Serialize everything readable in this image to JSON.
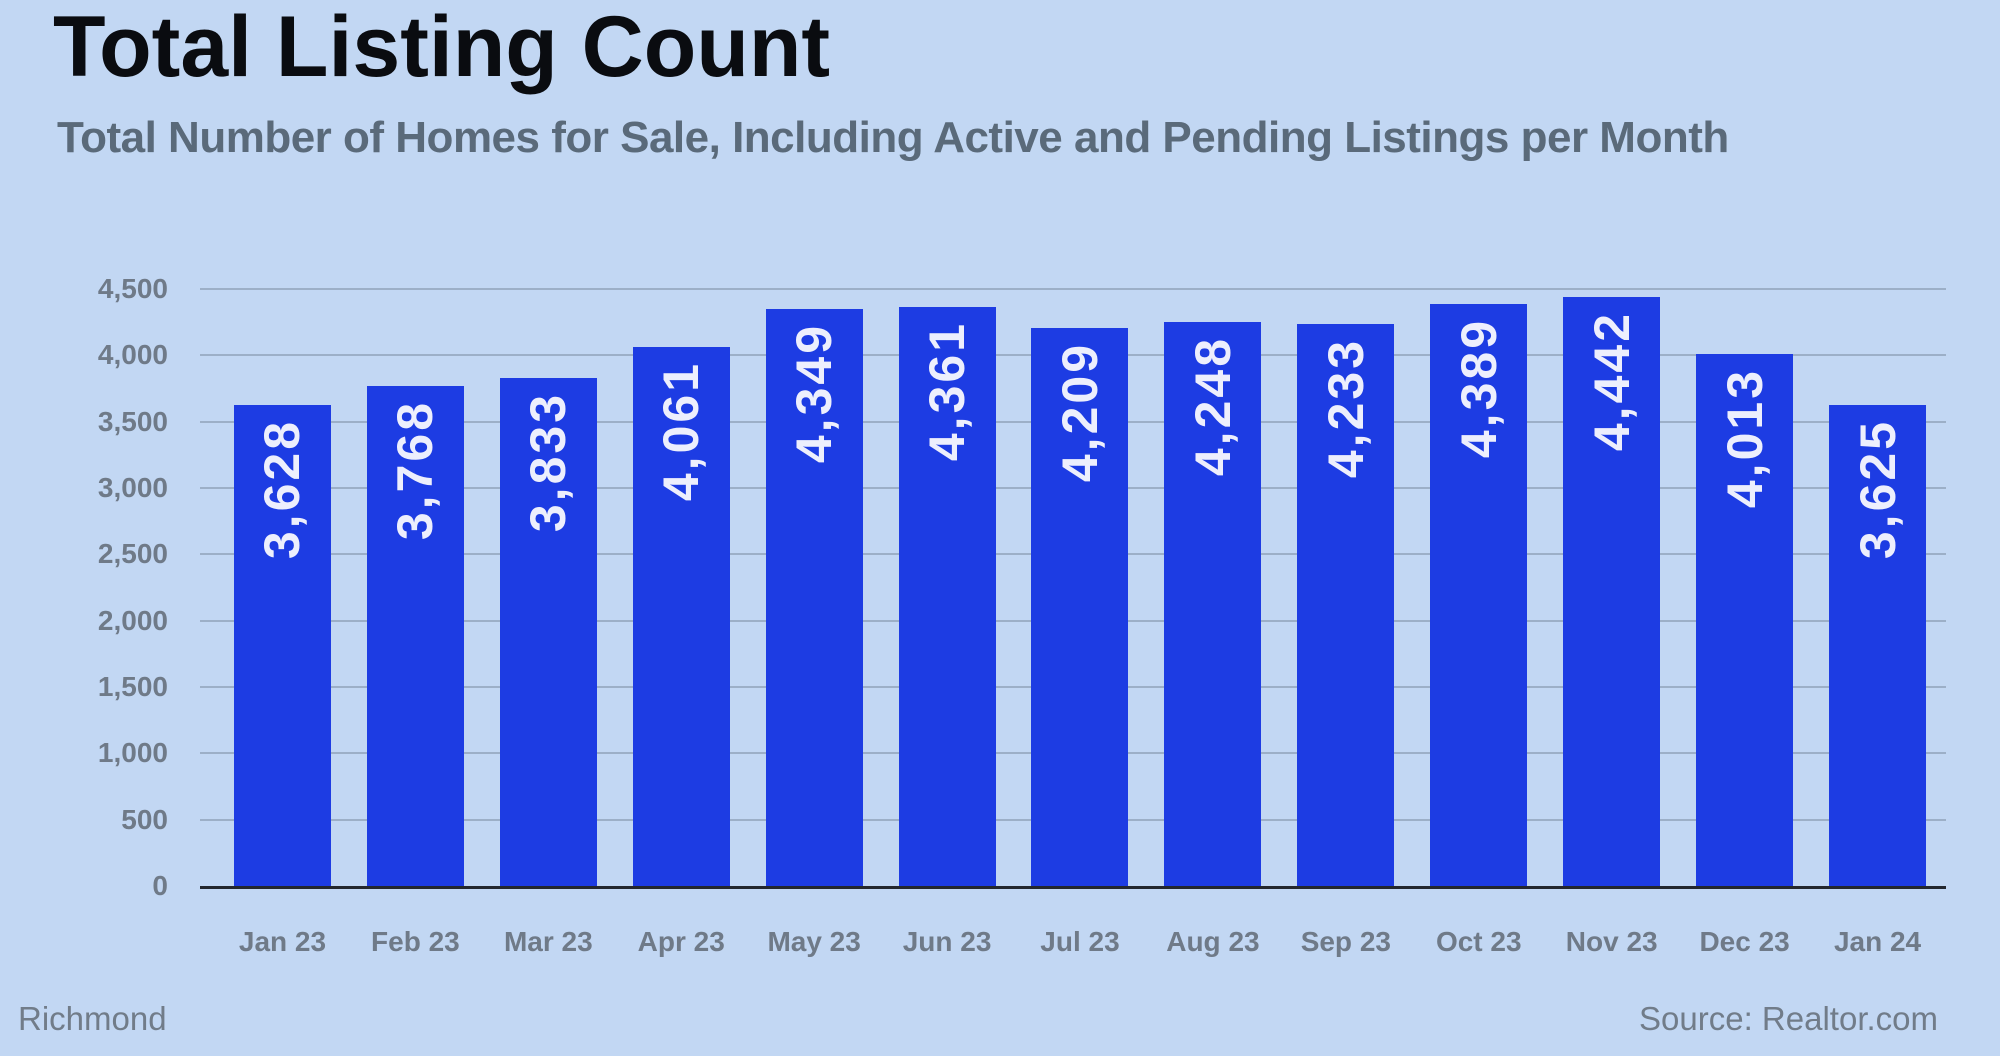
{
  "title": "Total Listing Count",
  "subtitle": "Total Number of Homes for Sale, Including Active and Pending Listings per Month",
  "footer": {
    "left": "Richmond",
    "right": "Source: Realtor.com"
  },
  "colors": {
    "background": "#c2d7f3",
    "bar": "#1d3ce3",
    "bar_label": "rgba(255,255,255,0.92)",
    "title": "#0a0c10",
    "subtitle": "#5a6a7a",
    "axis_label": "#6f7a88",
    "gridline": "rgba(130,148,170,0.60)",
    "axis_line": "#23272e",
    "footer_text": "#717c89"
  },
  "chart_data": {
    "type": "bar",
    "title": "Total Listing Count",
    "subtitle": "Total Number of Homes for Sale, Including Active and Pending Listings per Month",
    "xlabel": "",
    "ylabel": "",
    "ylim": [
      0,
      4500
    ],
    "grid": "horizontal",
    "legend": "none",
    "bar_orientation": "vertical",
    "value_label_style": "rotated-90-inside-top",
    "categories": [
      "Jan 23",
      "Feb 23",
      "Mar 23",
      "Apr 23",
      "May 23",
      "Jun 23",
      "Jul 23",
      "Aug 23",
      "Sep 23",
      "Oct 23",
      "Nov 23",
      "Dec 23",
      "Jan 24"
    ],
    "values": [
      3628,
      3768,
      3833,
      4061,
      4349,
      4361,
      4209,
      4248,
      4233,
      4389,
      4442,
      4013,
      3625
    ],
    "value_labels": [
      "3,628",
      "3,768",
      "3,833",
      "4,061",
      "4,349",
      "4,361",
      "4,209",
      "4,248",
      "4,233",
      "4,389",
      "4,442",
      "4,013",
      "3,625"
    ],
    "yticks": [
      {
        "value": 4500,
        "label": "4,500"
      },
      {
        "value": 4000,
        "label": "4,000"
      },
      {
        "value": 3500,
        "label": "3,500"
      },
      {
        "value": 3000,
        "label": "3,000"
      },
      {
        "value": 2500,
        "label": "2,500"
      },
      {
        "value": 2000,
        "label": "2,000"
      },
      {
        "value": 1500,
        "label": "1,500"
      },
      {
        "value": 1000,
        "label": "1,000"
      },
      {
        "value": 500,
        "label": "500"
      },
      {
        "value": 0,
        "label": "0"
      }
    ]
  }
}
